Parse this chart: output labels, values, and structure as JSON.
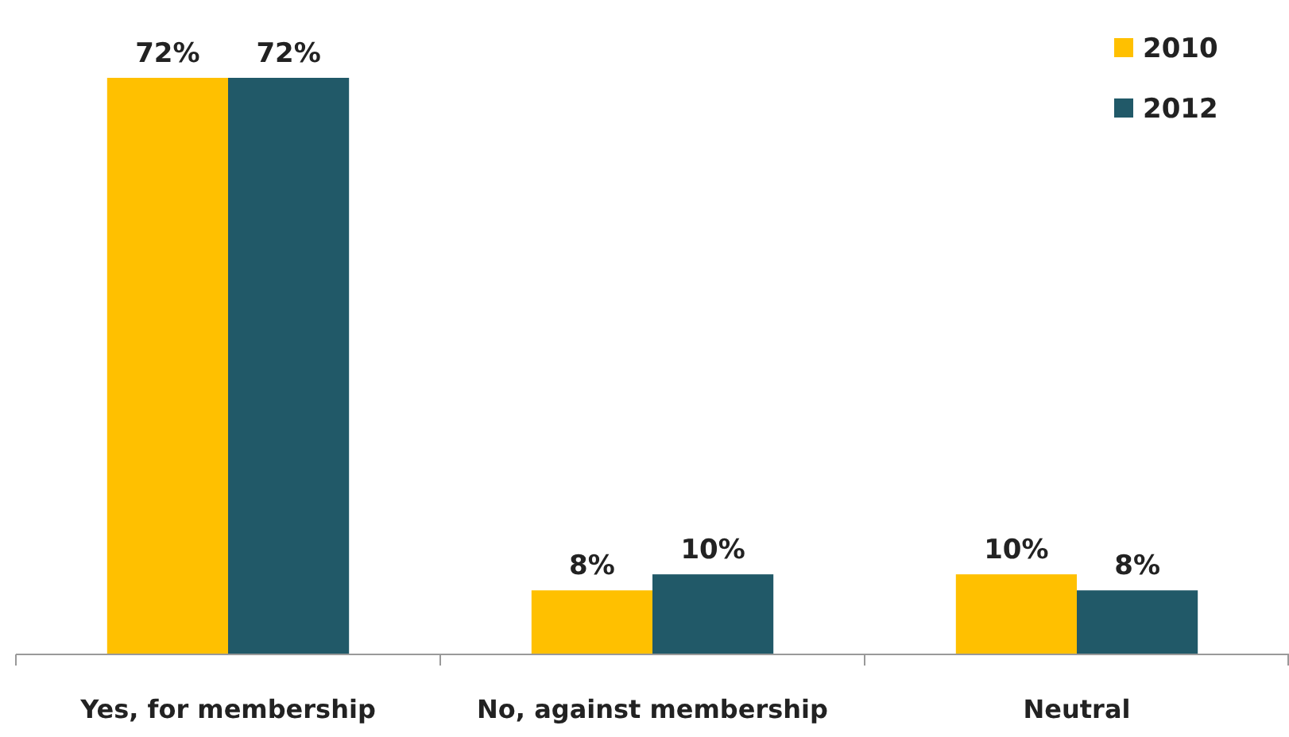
{
  "chart_data": {
    "type": "bar",
    "categories": [
      "Yes, for membership",
      "No, against membership",
      "Neutral"
    ],
    "series": [
      {
        "name": "2010",
        "color": "#ffc000",
        "values": [
          72,
          8,
          10
        ],
        "value_labels": [
          "72%",
          "8%",
          "10%"
        ]
      },
      {
        "name": "2012",
        "color": "#215968",
        "values": [
          72,
          10,
          8
        ],
        "value_labels": [
          "72%",
          "10%",
          "8%"
        ]
      }
    ],
    "legend": "top right"
  }
}
